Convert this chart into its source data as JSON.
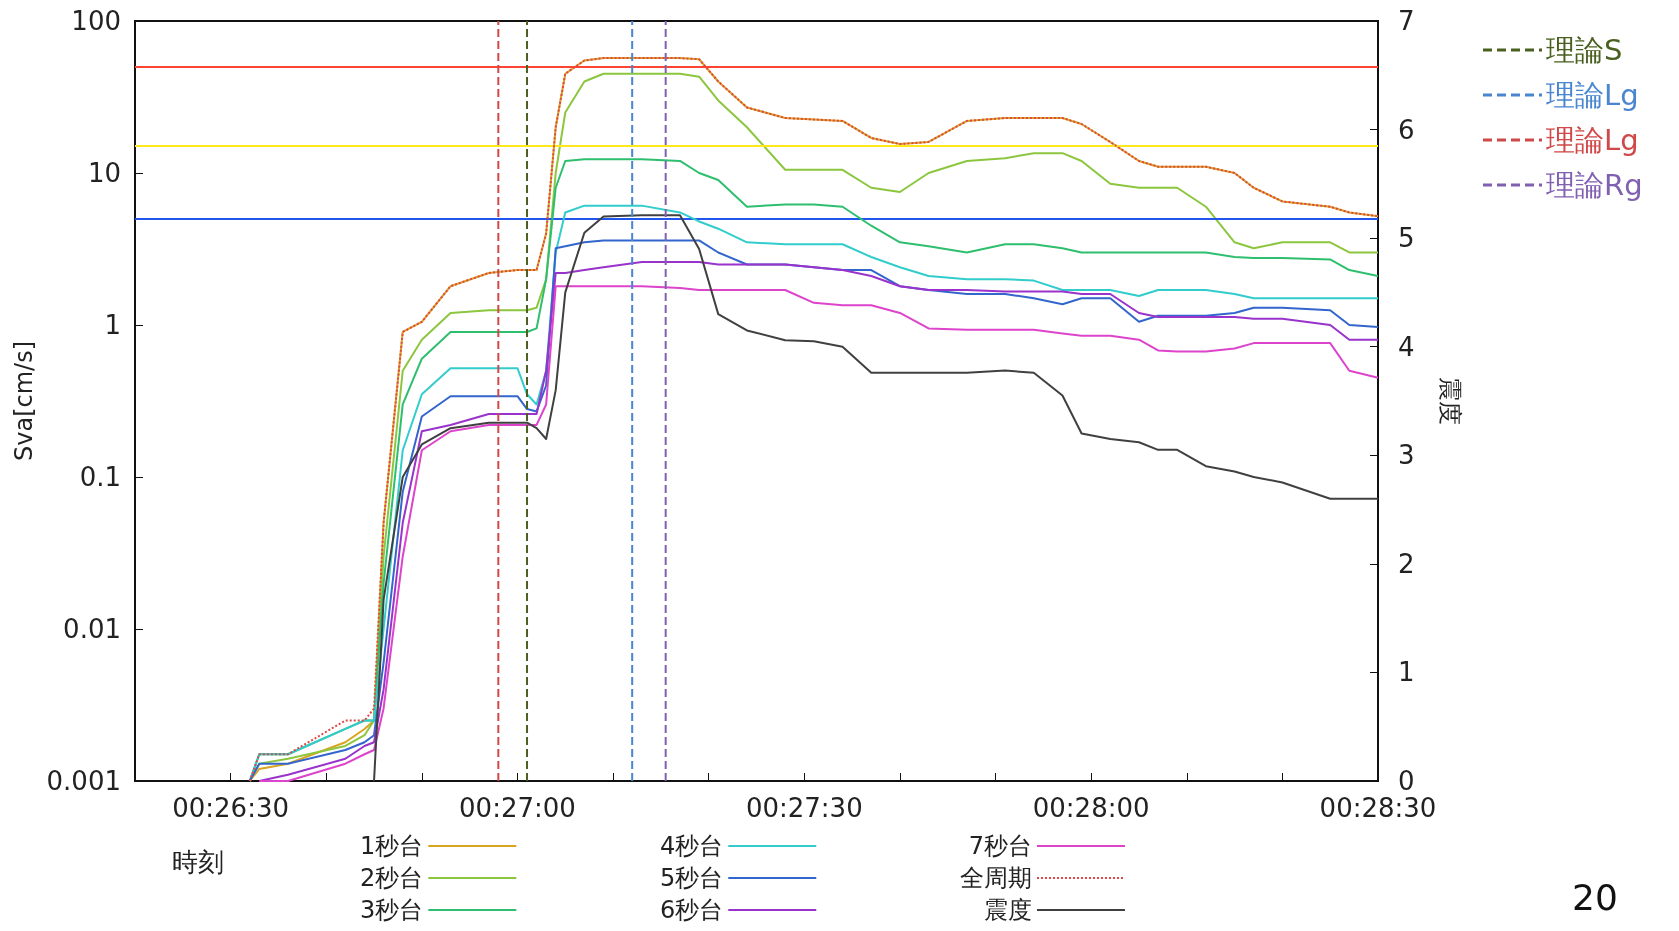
{
  "chart_data": {
    "type": "line",
    "xlabel": "時刻",
    "ylabel": "Sva[cm/s]",
    "y2label": "震度",
    "annotations": [
      "20"
    ],
    "x": [
      0.442222,
      0.4425,
      0.443333,
      0.445,
      0.445556,
      0.445833,
      0.446111,
      0.446667,
      0.447222,
      0.448056,
      0.449167,
      0.45,
      0.450278,
      0.450556,
      0.450833,
      0.451111,
      0.451389,
      0.451944,
      0.4525,
      0.453611,
      0.454722,
      0.455278,
      0.455833,
      0.456667,
      0.457778,
      0.458611,
      0.459444,
      0.460278,
      0.461111,
      0.461944,
      0.463056,
      0.464167,
      0.465,
      0.465833,
      0.466389,
      0.467222,
      0.468056,
      0.468611,
      0.469167,
      0.47,
      0.470833,
      0.471389,
      0.472222,
      0.473611,
      0.474167,
      0.475
    ],
    "series": [
      {
        "name": "1秒台",
        "color": "#d9a520",
        "values": [
          0.001,
          0.0012,
          0.0013,
          0.0018,
          0.0022,
          0.0025,
          0.05,
          0.9,
          1.05,
          1.8,
          2.2,
          2.3,
          2.3,
          2.3,
          4,
          20,
          45,
          55,
          57,
          57,
          57,
          56,
          40,
          27,
          23,
          22.5,
          22,
          17,
          15.5,
          16,
          22,
          23,
          23,
          23,
          21,
          16,
          12,
          11,
          11,
          11,
          10,
          8,
          6.5,
          6,
          5.5,
          5.2
        ]
      },
      {
        "name": "2秒台",
        "color": "#8cc63f",
        "values": [
          0.001,
          0.0013,
          0.0014,
          0.0017,
          0.002,
          0.0025,
          0.03,
          0.5,
          0.8,
          1.2,
          1.25,
          1.25,
          1.25,
          1.3,
          2,
          10,
          25,
          40,
          45,
          45,
          45,
          43,
          30,
          20,
          10.5,
          10.5,
          10.5,
          8,
          7.5,
          10,
          12,
          12.5,
          13.5,
          13.5,
          12,
          8.5,
          8,
          8,
          8,
          6,
          3.5,
          3.2,
          3.5,
          3.5,
          3,
          3
        ]
      },
      {
        "name": "3秒台",
        "color": "#2ebf6e",
        "values": [
          0.001,
          0.0015,
          0.0015,
          0.0022,
          0.0025,
          0.0025,
          0.02,
          0.3,
          0.6,
          0.9,
          0.9,
          0.9,
          0.9,
          0.95,
          2,
          8,
          12,
          12.3,
          12.3,
          12.3,
          12,
          10,
          9,
          6,
          6.2,
          6.2,
          6,
          4.5,
          3.5,
          3.3,
          3,
          3.4,
          3.4,
          3.2,
          3,
          3,
          3,
          3,
          3,
          3,
          2.8,
          2.76,
          2.76,
          2.7,
          2.3,
          2.1
        ]
      },
      {
        "name": "4秒台",
        "color": "#33cccc",
        "values": [
          0.001,
          0.0015,
          0.0015,
          0.0022,
          0.0025,
          0.0025,
          0.01,
          0.15,
          0.35,
          0.52,
          0.52,
          0.52,
          0.35,
          0.3,
          0.5,
          3,
          5.5,
          6.1,
          6.1,
          6.1,
          5.5,
          4.8,
          4.3,
          3.5,
          3.4,
          3.4,
          3.4,
          2.8,
          2.4,
          2.1,
          2,
          2,
          1.96,
          1.7,
          1.7,
          1.7,
          1.55,
          1.7,
          1.7,
          1.7,
          1.6,
          1.5,
          1.5,
          1.5,
          1.5,
          1.5
        ]
      },
      {
        "name": "5秒台",
        "color": "#3366cc",
        "values": [
          0.001,
          0.0013,
          0.0013,
          0.0016,
          0.0018,
          0.002,
          0.006,
          0.08,
          0.25,
          0.34,
          0.34,
          0.34,
          0.28,
          0.27,
          0.4,
          3.2,
          3.3,
          3.5,
          3.6,
          3.6,
          3.6,
          3.6,
          3,
          2.5,
          2.5,
          2.4,
          2.3,
          2.3,
          1.8,
          1.7,
          1.6,
          1.6,
          1.5,
          1.37,
          1.5,
          1.5,
          1.05,
          1.15,
          1.15,
          1.15,
          1.2,
          1.3,
          1.3,
          1.25,
          1,
          0.97
        ]
      },
      {
        "name": "6秒台",
        "color": "#9933cc",
        "values": [
          null,
          0.001,
          0.0011,
          0.0014,
          0.0017,
          0.0018,
          0.004,
          0.05,
          0.2,
          0.22,
          0.26,
          0.26,
          0.26,
          0.26,
          0.5,
          2.2,
          2.2,
          2.3,
          2.4,
          2.6,
          2.6,
          2.6,
          2.5,
          2.5,
          2.5,
          2.4,
          2.3,
          2.1,
          1.8,
          1.7,
          1.7,
          1.66,
          1.66,
          1.66,
          1.6,
          1.6,
          1.2,
          1.13,
          1.13,
          1.13,
          1.13,
          1.1,
          1.1,
          1,
          0.8,
          0.8
        ]
      },
      {
        "name": "7秒台",
        "color": "#dd44cc",
        "values": [
          null,
          0.001,
          0.001,
          0.0013,
          0.0015,
          0.0016,
          0.003,
          0.03,
          0.15,
          0.2,
          0.22,
          0.22,
          0.22,
          0.22,
          0.3,
          1.8,
          1.8,
          1.8,
          1.8,
          1.8,
          1.75,
          1.7,
          1.7,
          1.7,
          1.7,
          1.4,
          1.35,
          1.35,
          1.2,
          0.95,
          0.93,
          0.93,
          0.93,
          0.88,
          0.85,
          0.85,
          0.8,
          0.68,
          0.67,
          0.67,
          0.7,
          0.76,
          0.76,
          0.76,
          0.5,
          0.45
        ]
      },
      {
        "name": "全周期",
        "color": "#e04848",
        "line_style": "dotted",
        "values": [
          0.001,
          0.0015,
          0.0015,
          0.0025,
          0.0025,
          0.003,
          0.05,
          0.9,
          1.05,
          1.8,
          2.2,
          2.3,
          2.3,
          2.3,
          4,
          20,
          45,
          55,
          57,
          57,
          57,
          56,
          40,
          27,
          23,
          22.5,
          22,
          17,
          15.5,
          16,
          22,
          23,
          23,
          23,
          21,
          16,
          12,
          11,
          11,
          11,
          10,
          8,
          6.5,
          6,
          5.5,
          5.2
        ]
      },
      {
        "name": "震度",
        "color": "#404040",
        "axis": "y2",
        "values": [
          null,
          null,
          null,
          null,
          null,
          0,
          1.67,
          2.8,
          3.1,
          3.25,
          3.3,
          3.3,
          3.3,
          3.25,
          3.15,
          3.6,
          4.5,
          5.05,
          5.2,
          5.21,
          5.21,
          4.9,
          4.3,
          4.15,
          4.06,
          4.05,
          4,
          3.76,
          3.76,
          3.76,
          3.76,
          3.78,
          3.76,
          3.55,
          3.2,
          3.15,
          3.12,
          3.05,
          3.05,
          2.9,
          2.85,
          2.8,
          2.75,
          2.6,
          2.6,
          2.6
        ]
      },
      {
        "name": "理論S",
        "color": "#4a6020",
        "line_style": "dashed",
        "x": [
          0.450278,
          0.450278
        ],
        "values": [
          0.001,
          100
        ]
      },
      {
        "name": "理論Lg",
        "color": "#4a86d0",
        "line_style": "dashed",
        "x": [
          0.453333,
          0.453333
        ],
        "values": [
          0.001,
          100
        ]
      },
      {
        "name": "理論Lg",
        "color": "#d04848",
        "line_style": "dashed",
        "x": [
          0.449444,
          0.449444
        ],
        "values": [
          0.001,
          100
        ]
      },
      {
        "name": "理論Rg",
        "color": "#8060b0",
        "line_style": "dashed",
        "x": [
          0.454306,
          0.454306
        ],
        "values": [
          0.001,
          100
        ]
      }
    ],
    "ref_lines": [
      {
        "axis": "y",
        "value": 50,
        "color": "#ff4433"
      },
      {
        "axis": "y",
        "value": 15,
        "color": "#ffe81a"
      },
      {
        "axis": "y",
        "value": 5,
        "color": "#2255ee"
      }
    ],
    "xlim": [
      0.438889,
      0.475
    ],
    "xticks": [
      {
        "value": 0.441667,
        "label": "00:26:30"
      },
      {
        "value": 0.444444,
        "label": null
      },
      {
        "value": 0.447222,
        "label": null
      },
      {
        "value": 0.45,
        "label": "00:27:00"
      },
      {
        "value": 0.452778,
        "label": null
      },
      {
        "value": 0.455556,
        "label": null
      },
      {
        "value": 0.458333,
        "label": "00:27:30"
      },
      {
        "value": 0.461111,
        "label": null
      },
      {
        "value": 0.463889,
        "label": null
      },
      {
        "value": 0.466667,
        "label": "00:28:00"
      },
      {
        "value": 0.469444,
        "label": null
      },
      {
        "value": 0.472222,
        "label": null
      },
      {
        "value": 0.475,
        "label": "00:28:30"
      }
    ],
    "log": "y",
    "ylim": [
      0.001,
      100
    ],
    "yticks": [
      0.001,
      0.01,
      0.1,
      1,
      10,
      100
    ],
    "y2lim": [
      0,
      7
    ],
    "y2ticks": [
      0,
      1,
      2,
      3,
      4,
      5,
      6,
      7
    ],
    "grid": false,
    "legend": "bottom",
    "marker": "none",
    "line_style": "solid"
  }
}
